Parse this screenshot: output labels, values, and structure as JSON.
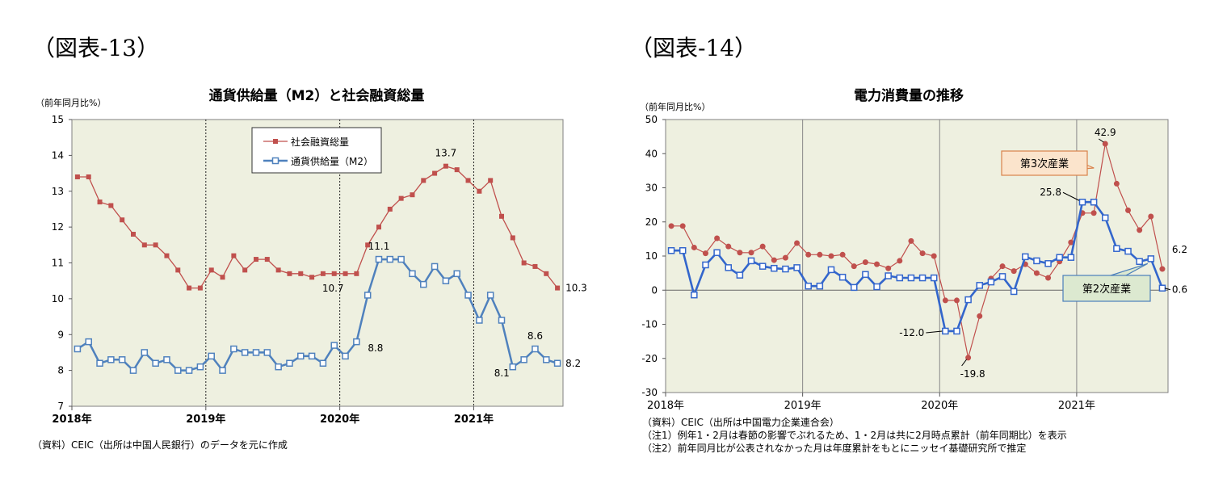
{
  "figures": {
    "fig13_label": "（図表-13）",
    "fig14_label": "（図表-14）"
  },
  "chart_data": [
    {
      "type": "line",
      "title": "通貨供給量（M2）と社会融資総量",
      "ylabel": "（前年同月比%）",
      "ylim": [
        7,
        15
      ],
      "yticks": [
        7,
        8,
        9,
        10,
        11,
        12,
        13,
        14,
        15
      ],
      "xtick_labels": [
        "2018年",
        "2019年",
        "2020年",
        "2021年"
      ],
      "grid": false,
      "legend_position": "top-center",
      "source_note": "（資料）CEIC（出所は中国人民銀行）のデータを元に作成",
      "x": [
        "2018-01",
        "2018-02",
        "2018-03",
        "2018-04",
        "2018-05",
        "2018-06",
        "2018-07",
        "2018-08",
        "2018-09",
        "2018-10",
        "2018-11",
        "2018-12",
        "2019-01",
        "2019-02",
        "2019-03",
        "2019-04",
        "2019-05",
        "2019-06",
        "2019-07",
        "2019-08",
        "2019-09",
        "2019-10",
        "2019-11",
        "2019-12",
        "2020-01",
        "2020-02",
        "2020-03",
        "2020-04",
        "2020-05",
        "2020-06",
        "2020-07",
        "2020-08",
        "2020-09",
        "2020-10",
        "2020-11",
        "2020-12",
        "2021-01",
        "2021-02",
        "2021-03",
        "2021-04",
        "2021-05",
        "2021-06",
        "2021-07",
        "2021-08"
      ],
      "series": [
        {
          "name": "社会融資総量",
          "color": "#c0504d",
          "marker": "filled-square",
          "values": [
            13.4,
            13.4,
            12.7,
            12.6,
            12.2,
            11.8,
            11.5,
            11.5,
            11.2,
            10.8,
            10.3,
            10.3,
            10.8,
            10.6,
            11.2,
            10.8,
            11.1,
            11.1,
            10.8,
            10.7,
            10.7,
            10.6,
            10.7,
            10.7,
            10.7,
            10.7,
            11.5,
            12.0,
            12.5,
            12.8,
            12.9,
            13.3,
            13.5,
            13.7,
            13.6,
            13.3,
            13.0,
            13.3,
            12.3,
            11.7,
            11.0,
            10.9,
            10.7,
            10.3
          ]
        },
        {
          "name": "通貨供給量（M2）",
          "color": "#4f81bd",
          "marker": "hollow-square",
          "values": [
            8.6,
            8.8,
            8.2,
            8.3,
            8.3,
            8.0,
            8.5,
            8.2,
            8.3,
            8.0,
            8.0,
            8.1,
            8.4,
            8.0,
            8.6,
            8.5,
            8.5,
            8.5,
            8.1,
            8.2,
            8.4,
            8.4,
            8.2,
            8.7,
            8.4,
            8.8,
            10.1,
            11.1,
            11.1,
            11.1,
            10.7,
            10.4,
            10.9,
            10.5,
            10.7,
            10.1,
            9.4,
            10.1,
            9.4,
            8.1,
            8.3,
            8.6,
            8.3,
            8.2
          ]
        }
      ],
      "annotations": [
        {
          "series": 0,
          "index": 33,
          "text": "13.7"
        },
        {
          "series": 0,
          "index": 24,
          "text": "10.7"
        },
        {
          "series": 0,
          "index": 43,
          "text": "10.3"
        },
        {
          "series": 1,
          "index": 27,
          "text": "11.1"
        },
        {
          "series": 1,
          "index": 25,
          "text": "8.8"
        },
        {
          "series": 1,
          "index": 39,
          "text": "8.1"
        },
        {
          "series": 1,
          "index": 41,
          "text": "8.6"
        },
        {
          "series": 1,
          "index": 43,
          "text": "8.2"
        }
      ]
    },
    {
      "type": "line",
      "title": "電力消費量の推移",
      "ylabel": "（前年同月比%）",
      "ylim": [
        -30,
        50
      ],
      "yticks": [
        -30,
        -20,
        -10,
        0,
        10,
        20,
        30,
        40,
        50
      ],
      "xtick_labels": [
        "2018年",
        "2019年",
        "2020年",
        "2021年"
      ],
      "grid": false,
      "source_notes": [
        "（資料）CEIC（出所は中国電力企業連合会）",
        "（注1）例年1・2月は春節の影響でぶれるため、1・2月は共に2月時点累計（前年同期比）を表示",
        "（注2）前年同月比が公表されなかった月は年度累計をもとにニッセイ基礎研究所で推定"
      ],
      "x": [
        "2018-01",
        "2018-02",
        "2018-03",
        "2018-04",
        "2018-05",
        "2018-06",
        "2018-07",
        "2018-08",
        "2018-09",
        "2018-10",
        "2018-11",
        "2018-12",
        "2019-01",
        "2019-02",
        "2019-03",
        "2019-04",
        "2019-05",
        "2019-06",
        "2019-07",
        "2019-08",
        "2019-09",
        "2019-10",
        "2019-11",
        "2019-12",
        "2020-01",
        "2020-02",
        "2020-03",
        "2020-04",
        "2020-05",
        "2020-06",
        "2020-07",
        "2020-08",
        "2020-09",
        "2020-10",
        "2020-11",
        "2020-12",
        "2021-01",
        "2021-02",
        "2021-03",
        "2021-04",
        "2021-05",
        "2021-06",
        "2021-07",
        "2021-08"
      ],
      "series": [
        {
          "name": "第3次産業",
          "color": "#c0504d",
          "marker": "filled-circle",
          "values": [
            18.8,
            18.8,
            12.5,
            10.8,
            15.2,
            12.8,
            11.0,
            11.0,
            12.8,
            8.8,
            9.5,
            13.8,
            10.4,
            10.4,
            10.0,
            10.4,
            7.0,
            8.2,
            7.6,
            6.4,
            8.6,
            14.4,
            10.8,
            10.0,
            -3.0,
            -3.0,
            -19.8,
            -7.6,
            3.4,
            7.0,
            5.6,
            7.6,
            5.0,
            3.6,
            8.4,
            14.0,
            22.6,
            22.6,
            42.9,
            31.2,
            23.4,
            17.6,
            21.6,
            6.2
          ]
        },
        {
          "name": "第2次産業",
          "color": "#3366cc",
          "marker": "hollow-square",
          "values": [
            11.6,
            11.6,
            -1.4,
            7.4,
            11.0,
            6.6,
            4.4,
            8.6,
            7.0,
            6.4,
            6.2,
            6.6,
            1.2,
            1.2,
            6.0,
            3.8,
            0.8,
            4.6,
            1.0,
            4.2,
            3.6,
            3.6,
            3.6,
            3.6,
            -12.0,
            -12.0,
            -2.8,
            1.4,
            2.4,
            4.0,
            -0.4,
            9.8,
            8.6,
            7.8,
            9.6,
            9.6,
            25.8,
            25.8,
            21.2,
            12.2,
            11.4,
            8.4,
            9.2,
            0.6
          ]
        }
      ],
      "annotations": [
        {
          "series": 0,
          "index": 38,
          "text": "42.9"
        },
        {
          "series": 0,
          "index": 26,
          "text": "-19.8"
        },
        {
          "series": 0,
          "index": 43,
          "text": "6.2"
        },
        {
          "series": 1,
          "index": 36,
          "text": "25.8"
        },
        {
          "series": 1,
          "index": 24,
          "text": "-12.0"
        },
        {
          "series": 1,
          "index": 43,
          "text": "0.6"
        }
      ],
      "callouts": [
        {
          "series": 0,
          "index": 38,
          "text": "第3次産業"
        },
        {
          "series": 1,
          "index": 42,
          "text": "第2次産業"
        }
      ]
    }
  ]
}
